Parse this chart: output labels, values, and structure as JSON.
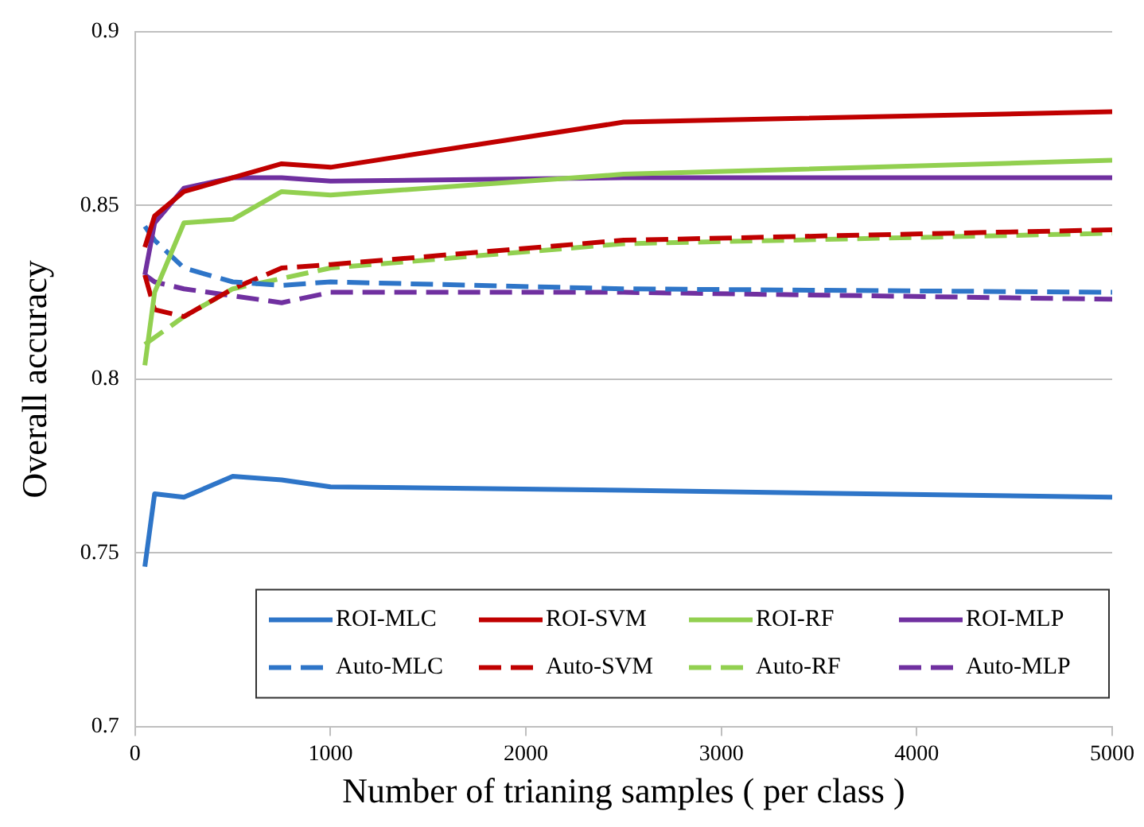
{
  "chart_data": {
    "type": "line",
    "xlabel": "Number of trianing samples ( per class )",
    "ylabel": "Overall accuracy",
    "x": [
      50,
      100,
      250,
      500,
      750,
      1000,
      2500,
      5000
    ],
    "xlim": [
      0,
      5000
    ],
    "xticks": [
      0,
      1000,
      2000,
      3000,
      4000,
      5000
    ],
    "ylim": [
      0.7,
      0.9
    ],
    "yticks": [
      0.7,
      0.75,
      0.8,
      0.85,
      0.9
    ],
    "grid": "y",
    "legend": "bottom right",
    "marker": "none",
    "series": [
      {
        "name": "ROI-MLC",
        "color": "#2e75c8",
        "line_style": "solid",
        "values": [
          0.746,
          0.767,
          0.766,
          0.772,
          0.771,
          0.769,
          0.768,
          0.766
        ]
      },
      {
        "name": "ROI-SVM",
        "color": "#c00000",
        "line_style": "solid",
        "values": [
          0.838,
          0.847,
          0.854,
          0.858,
          0.862,
          0.861,
          0.874,
          0.877
        ]
      },
      {
        "name": "ROI-RF",
        "color": "#92d050",
        "line_style": "solid",
        "values": [
          0.804,
          0.825,
          0.845,
          0.846,
          0.854,
          0.853,
          0.859,
          0.863
        ]
      },
      {
        "name": "ROI-MLP",
        "color": "#7030a0",
        "line_style": "solid",
        "values": [
          0.83,
          0.845,
          0.855,
          0.858,
          0.858,
          0.857,
          0.858,
          0.858
        ]
      },
      {
        "name": "Auto-MLC",
        "color": "#2e75c8",
        "line_style": "dashed",
        "values": [
          0.844,
          0.84,
          0.832,
          0.828,
          0.827,
          0.828,
          0.826,
          0.825
        ]
      },
      {
        "name": "Auto-SVM",
        "color": "#c00000",
        "line_style": "dashed",
        "values": [
          0.83,
          0.82,
          0.818,
          0.826,
          0.832,
          0.833,
          0.84,
          0.843
        ]
      },
      {
        "name": "Auto-RF",
        "color": "#92d050",
        "line_style": "dashed",
        "values": [
          0.81,
          0.812,
          0.818,
          0.826,
          0.829,
          0.832,
          0.839,
          0.842
        ]
      },
      {
        "name": "Auto-MLP",
        "color": "#7030a0",
        "line_style": "dashed",
        "values": [
          0.83,
          0.828,
          0.826,
          0.824,
          0.822,
          0.825,
          0.825,
          0.823
        ]
      }
    ]
  }
}
